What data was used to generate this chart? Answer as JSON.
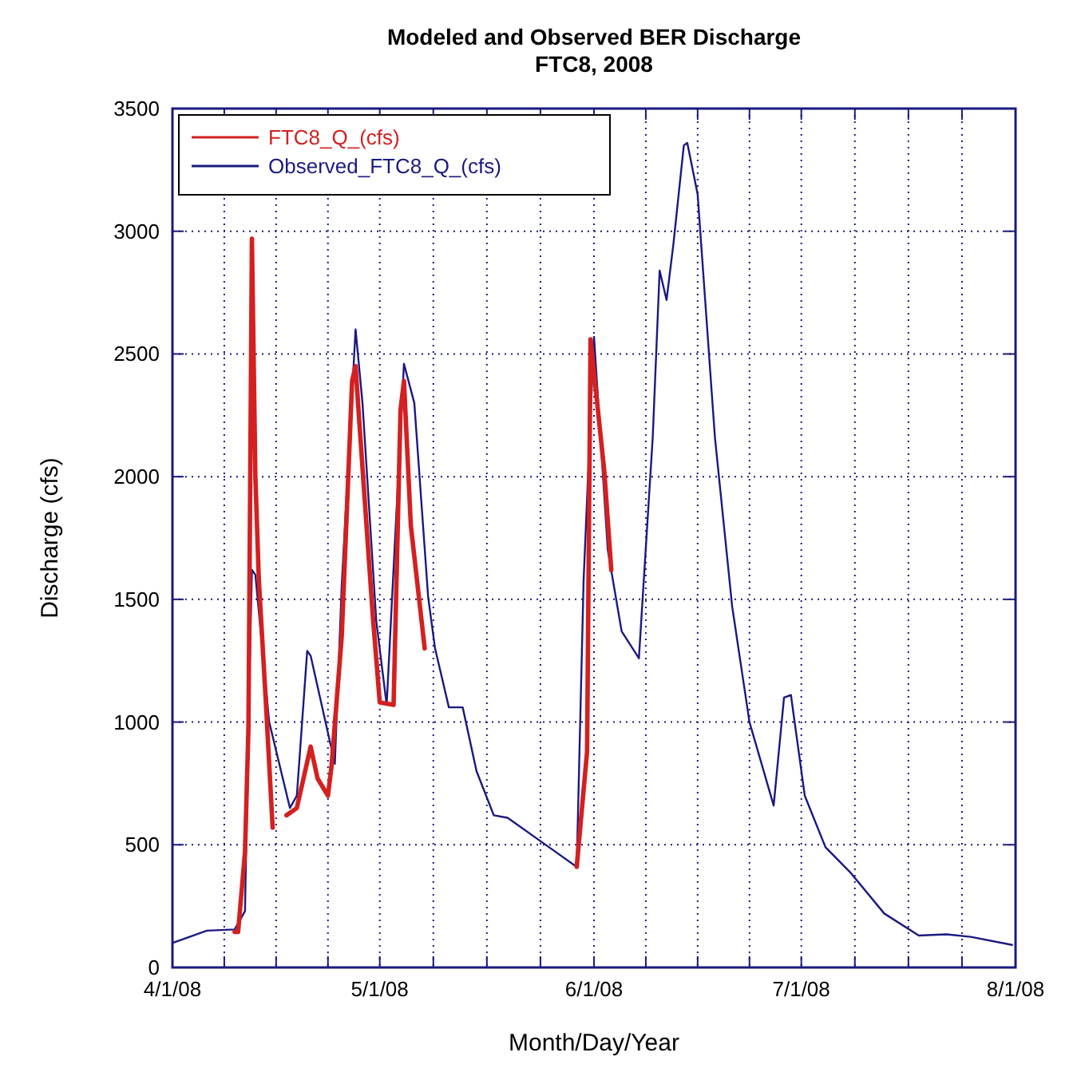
{
  "chart_data": {
    "type": "line",
    "title": "Modeled and Observed BER Discharge",
    "subtitle": "FTC8, 2008",
    "xlabel": "Month/Day/Year",
    "ylabel": "Discharge (cfs)",
    "xlim": [
      "2008-04-01",
      "2008-08-01"
    ],
    "xticks": [
      {
        "value": "2008-04-01",
        "label": "4/1/08"
      },
      {
        "value": "2008-04-08T12:00",
        "label": null
      },
      {
        "value": "2008-04-16",
        "label": null
      },
      {
        "value": "2008-04-23T12:00",
        "label": null
      },
      {
        "value": "2008-05-01",
        "label": "5/1/08"
      },
      {
        "value": "2008-05-08T18:00",
        "label": null
      },
      {
        "value": "2008-05-16T12:00",
        "label": null
      },
      {
        "value": "2008-05-24T06:00",
        "label": null
      },
      {
        "value": "2008-06-01",
        "label": "6/1/08"
      },
      {
        "value": "2008-06-08T12:00",
        "label": null
      },
      {
        "value": "2008-06-16",
        "label": null
      },
      {
        "value": "2008-06-23T12:00",
        "label": null
      },
      {
        "value": "2008-07-01",
        "label": "7/1/08"
      },
      {
        "value": "2008-07-08T18:00",
        "label": null
      },
      {
        "value": "2008-07-16T12:00",
        "label": null
      },
      {
        "value": "2008-07-24T06:00",
        "label": null
      },
      {
        "value": "2008-08-01",
        "label": "8/1/08"
      }
    ],
    "ylim": [
      0,
      3500
    ],
    "yticks": [
      0,
      500,
      1000,
      1500,
      2000,
      2500,
      3000,
      3500
    ],
    "grid": true,
    "legend": "top left",
    "series": [
      {
        "name": "FTC8_Q_(cfs)",
        "color": "#d42020",
        "x": [
          "2008-04-10",
          "2008-04-10T12:00",
          "2008-04-11T12:00",
          "2008-04-12",
          "2008-04-12T12:00",
          "2008-04-13",
          "2008-04-13T12:00",
          "2008-04-14T12:00",
          "2008-04-15T12:00",
          "2008-04-16T12:00",
          "2008-04-17T12:00",
          "2008-04-19",
          "2008-04-21",
          "2008-04-22",
          "2008-04-23T12:00",
          "2008-04-24",
          "2008-04-25T12:00",
          "2008-04-27",
          "2008-04-27T12:00",
          "2008-04-28",
          "2008-04-30",
          "2008-05-01",
          "2008-05-03",
          "2008-05-04",
          "2008-05-04T12:00",
          "2008-05-05T12:00",
          "2008-05-07T12:00",
          "2008-05-18",
          "2008-05-29T12:00",
          "2008-05-31",
          "2008-05-31T12:00",
          "2008-06-02T12:00",
          "2008-06-03T12:00"
        ],
        "values": [
          145,
          145,
          470,
          980,
          2970,
          2000,
          1580,
          1090,
          570,
          null,
          620,
          650,
          900,
          770,
          700,
          815,
          1350,
          2390,
          2450,
          2240,
          1430,
          1080,
          1070,
          2270,
          2390,
          1800,
          1300,
          null,
          410,
          880,
          2560,
          2020,
          1620
        ]
      },
      {
        "name": "Observed_FTC8_Q_(cfs)",
        "color": "#1a1a80",
        "x": [
          "2008-04-01",
          "2008-04-06",
          "2008-04-10",
          "2008-04-11T12:00",
          "2008-04-12",
          "2008-04-12T12:00",
          "2008-04-13",
          "2008-04-15",
          "2008-04-18",
          "2008-04-19",
          "2008-04-20T12:00",
          "2008-04-21",
          "2008-04-24T12:00",
          "2008-04-25T12:00",
          "2008-04-27T12:00",
          "2008-04-28T12:00",
          "2008-04-30T12:00",
          "2008-05-02",
          "2008-05-04T12:00",
          "2008-05-06",
          "2008-05-08",
          "2008-05-09",
          "2008-05-11",
          "2008-05-12T12:00",
          "2008-05-13",
          "2008-05-15",
          "2008-05-17T12:00",
          "2008-05-19T12:00",
          "2008-05-25T12:00",
          "2008-05-29T12:00",
          "2008-05-30T12:00",
          "2008-06-01",
          "2008-06-03",
          "2008-06-05",
          "2008-06-07T12:00",
          "2008-06-09T12:00",
          "2008-06-10T12:00",
          "2008-06-11T12:00",
          "2008-06-12T12:00",
          "2008-06-14",
          "2008-06-14T12:00",
          "2008-06-16",
          "2008-06-18T12:00",
          "2008-06-21",
          "2008-06-23T12:00",
          "2008-06-27",
          "2008-06-28T12:00",
          "2008-06-29T12:00",
          "2008-07-01T12:00",
          "2008-07-04T12:00",
          "2008-07-08",
          "2008-07-13",
          "2008-07-18",
          "2008-07-22",
          "2008-07-25T12:00",
          "2008-07-31T12:00"
        ],
        "values": [
          100,
          150,
          155,
          230,
          1000,
          1620,
          1600,
          1000,
          650,
          700,
          1290,
          1270,
          830,
          1560,
          2600,
          2300,
          1410,
          1070,
          2460,
          2300,
          1510,
          1300,
          1060,
          1060,
          1060,
          800,
          620,
          610,
          490,
          410,
          1580,
          2570,
          1700,
          1370,
          1260,
          2160,
          2840,
          2720,
          2950,
          3350,
          3360,
          3150,
          2160,
          1470,
          1000,
          660,
          1100,
          1110,
          700,
          490,
          390,
          220,
          130,
          135,
          125,
          92
        ]
      }
    ]
  }
}
